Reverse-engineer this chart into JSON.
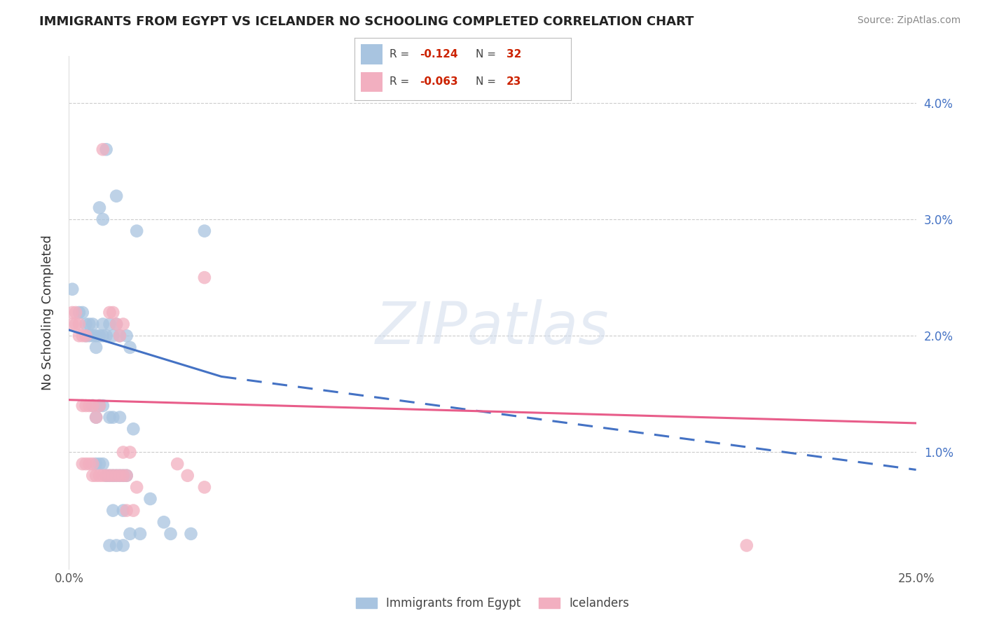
{
  "title": "IMMIGRANTS FROM EGYPT VS ICELANDER NO SCHOOLING COMPLETED CORRELATION CHART",
  "source": "Source: ZipAtlas.com",
  "ylabel": "No Schooling Completed",
  "xlim": [
    0.0,
    0.25
  ],
  "ylim": [
    0.0,
    0.044
  ],
  "blue_color": "#a8c4e0",
  "pink_color": "#f2afc0",
  "blue_line_color": "#4472c4",
  "pink_line_color": "#e85d8a",
  "blue_dots": [
    [
      0.001,
      0.024
    ],
    [
      0.003,
      0.022
    ],
    [
      0.004,
      0.022
    ],
    [
      0.005,
      0.021
    ],
    [
      0.005,
      0.02
    ],
    [
      0.006,
      0.021
    ],
    [
      0.006,
      0.02
    ],
    [
      0.007,
      0.021
    ],
    [
      0.007,
      0.02
    ],
    [
      0.008,
      0.02
    ],
    [
      0.008,
      0.019
    ],
    [
      0.009,
      0.02
    ],
    [
      0.01,
      0.02
    ],
    [
      0.01,
      0.021
    ],
    [
      0.011,
      0.02
    ],
    [
      0.012,
      0.021
    ],
    [
      0.013,
      0.02
    ],
    [
      0.014,
      0.021
    ],
    [
      0.015,
      0.02
    ],
    [
      0.017,
      0.02
    ],
    [
      0.018,
      0.019
    ],
    [
      0.009,
      0.031
    ],
    [
      0.011,
      0.036
    ],
    [
      0.014,
      0.032
    ],
    [
      0.02,
      0.029
    ],
    [
      0.01,
      0.03
    ],
    [
      0.04,
      0.029
    ],
    [
      0.007,
      0.014
    ],
    [
      0.008,
      0.013
    ],
    [
      0.009,
      0.014
    ],
    [
      0.01,
      0.014
    ],
    [
      0.012,
      0.013
    ],
    [
      0.013,
      0.013
    ],
    [
      0.015,
      0.013
    ],
    [
      0.019,
      0.012
    ],
    [
      0.008,
      0.009
    ],
    [
      0.009,
      0.009
    ],
    [
      0.01,
      0.009
    ],
    [
      0.011,
      0.008
    ],
    [
      0.012,
      0.008
    ],
    [
      0.013,
      0.008
    ],
    [
      0.014,
      0.008
    ],
    [
      0.015,
      0.008
    ],
    [
      0.016,
      0.008
    ],
    [
      0.017,
      0.008
    ],
    [
      0.013,
      0.005
    ],
    [
      0.016,
      0.005
    ],
    [
      0.024,
      0.006
    ],
    [
      0.028,
      0.004
    ],
    [
      0.036,
      0.003
    ],
    [
      0.018,
      0.003
    ],
    [
      0.021,
      0.003
    ],
    [
      0.03,
      0.003
    ],
    [
      0.012,
      0.002
    ],
    [
      0.014,
      0.002
    ],
    [
      0.016,
      0.002
    ]
  ],
  "pink_dots": [
    [
      0.001,
      0.022
    ],
    [
      0.001,
      0.021
    ],
    [
      0.002,
      0.022
    ],
    [
      0.002,
      0.021
    ],
    [
      0.003,
      0.021
    ],
    [
      0.003,
      0.02
    ],
    [
      0.004,
      0.02
    ],
    [
      0.005,
      0.02
    ],
    [
      0.012,
      0.022
    ],
    [
      0.013,
      0.022
    ],
    [
      0.014,
      0.021
    ],
    [
      0.015,
      0.02
    ],
    [
      0.016,
      0.021
    ],
    [
      0.01,
      0.036
    ],
    [
      0.04,
      0.025
    ],
    [
      0.004,
      0.014
    ],
    [
      0.005,
      0.014
    ],
    [
      0.006,
      0.014
    ],
    [
      0.007,
      0.014
    ],
    [
      0.008,
      0.013
    ],
    [
      0.009,
      0.014
    ],
    [
      0.004,
      0.009
    ],
    [
      0.005,
      0.009
    ],
    [
      0.006,
      0.009
    ],
    [
      0.007,
      0.009
    ],
    [
      0.007,
      0.008
    ],
    [
      0.008,
      0.008
    ],
    [
      0.009,
      0.008
    ],
    [
      0.01,
      0.008
    ],
    [
      0.011,
      0.008
    ],
    [
      0.012,
      0.008
    ],
    [
      0.013,
      0.008
    ],
    [
      0.014,
      0.008
    ],
    [
      0.015,
      0.008
    ],
    [
      0.016,
      0.008
    ],
    [
      0.017,
      0.008
    ],
    [
      0.016,
      0.01
    ],
    [
      0.018,
      0.01
    ],
    [
      0.017,
      0.005
    ],
    [
      0.019,
      0.005
    ],
    [
      0.032,
      0.009
    ],
    [
      0.035,
      0.008
    ],
    [
      0.04,
      0.007
    ],
    [
      0.02,
      0.007
    ],
    [
      0.2,
      0.002
    ]
  ],
  "blue_trendline_solid": [
    [
      0.0,
      0.0205
    ],
    [
      0.045,
      0.0165
    ]
  ],
  "blue_trendline_dashed": [
    [
      0.045,
      0.0165
    ],
    [
      0.25,
      0.0085
    ]
  ],
  "pink_trendline": [
    [
      0.0,
      0.0145
    ],
    [
      0.25,
      0.0125
    ]
  ],
  "legend_r1_val": "-0.124",
  "legend_n1_val": "32",
  "legend_r2_val": "-0.063",
  "legend_n2_val": "23",
  "watermark_text": "ZIPatlas",
  "background_color": "#ffffff",
  "grid_color": "#cccccc"
}
